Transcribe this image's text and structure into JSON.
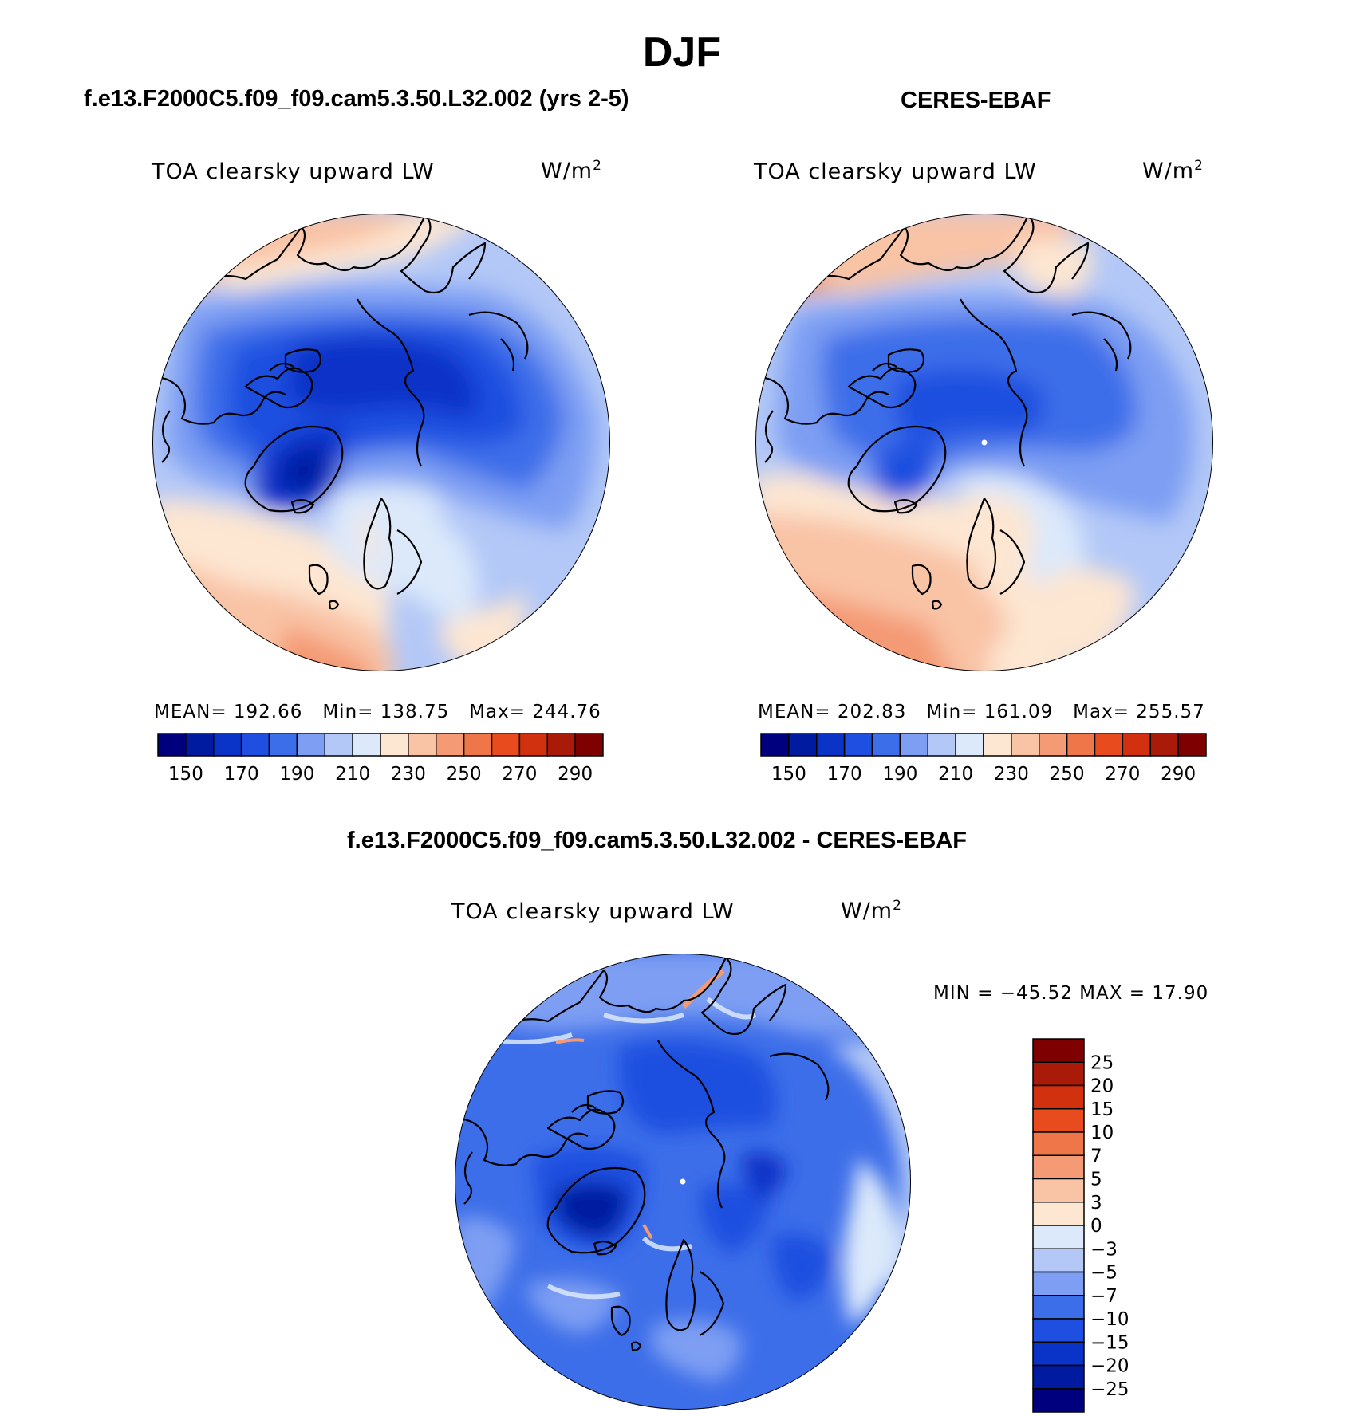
{
  "title": "DJF",
  "panels": [
    {
      "id": "model",
      "subtitle": "f.e13.F2000C5.f09_f09.cam5.3.50.L32.002 (yrs 2-5)",
      "variable": "TOA clearsky upward LW",
      "units_base": "W/m",
      "units_sup": "2",
      "stats": {
        "mean_label": "MEAN=",
        "mean": "192.66",
        "min_label": "Min=",
        "min": "138.75",
        "max_label": "Max=",
        "max": "244.76"
      }
    },
    {
      "id": "obs",
      "subtitle": "CERES-EBAF",
      "variable": "TOA clearsky upward LW",
      "units_base": "W/m",
      "units_sup": "2",
      "stats": {
        "mean_label": "MEAN=",
        "mean": "202.83",
        "min_label": "Min=",
        "min": "161.09",
        "max_label": "Max=",
        "max": "255.57"
      }
    }
  ],
  "difference": {
    "subtitle": "f.e13.F2000C5.f09_f09.cam5.3.50.L32.002 - CERES-EBAF",
    "variable": "TOA clearsky upward LW",
    "units_base": "W/m",
    "units_sup": "2",
    "min_max_text": "MIN = −45.52 MAX =  17.90",
    "min": -45.52,
    "max": 17.9
  },
  "abs_colorbar": {
    "levels": [
      "150",
      "170",
      "190",
      "210",
      "230",
      "250",
      "270",
      "290"
    ],
    "colors": [
      "#00007f",
      "#001ba0",
      "#0a33c7",
      "#1f4fe0",
      "#3d6ee9",
      "#7d9ef3",
      "#b3c8f7",
      "#dce9fb",
      "#fde6d2",
      "#f9c3a5",
      "#f49a75",
      "#ee7649",
      "#e84b1e",
      "#d23110",
      "#aa1a08",
      "#7f0000"
    ]
  },
  "diff_colorbar": {
    "levels": [
      "25",
      "20",
      "15",
      "10",
      "7",
      "5",
      "3",
      "0",
      "−3",
      "−5",
      "−7",
      "−10",
      "−15",
      "−20",
      "−25"
    ],
    "colors": [
      "#7f0000",
      "#aa1a08",
      "#d23110",
      "#e84b1e",
      "#ee7649",
      "#f49a75",
      "#f9c3a5",
      "#fde6d2",
      "#dce9fb",
      "#b3c8f7",
      "#7d9ef3",
      "#3d6ee9",
      "#1f4fe0",
      "#0a33c7",
      "#001ba0",
      "#00007f"
    ]
  }
}
